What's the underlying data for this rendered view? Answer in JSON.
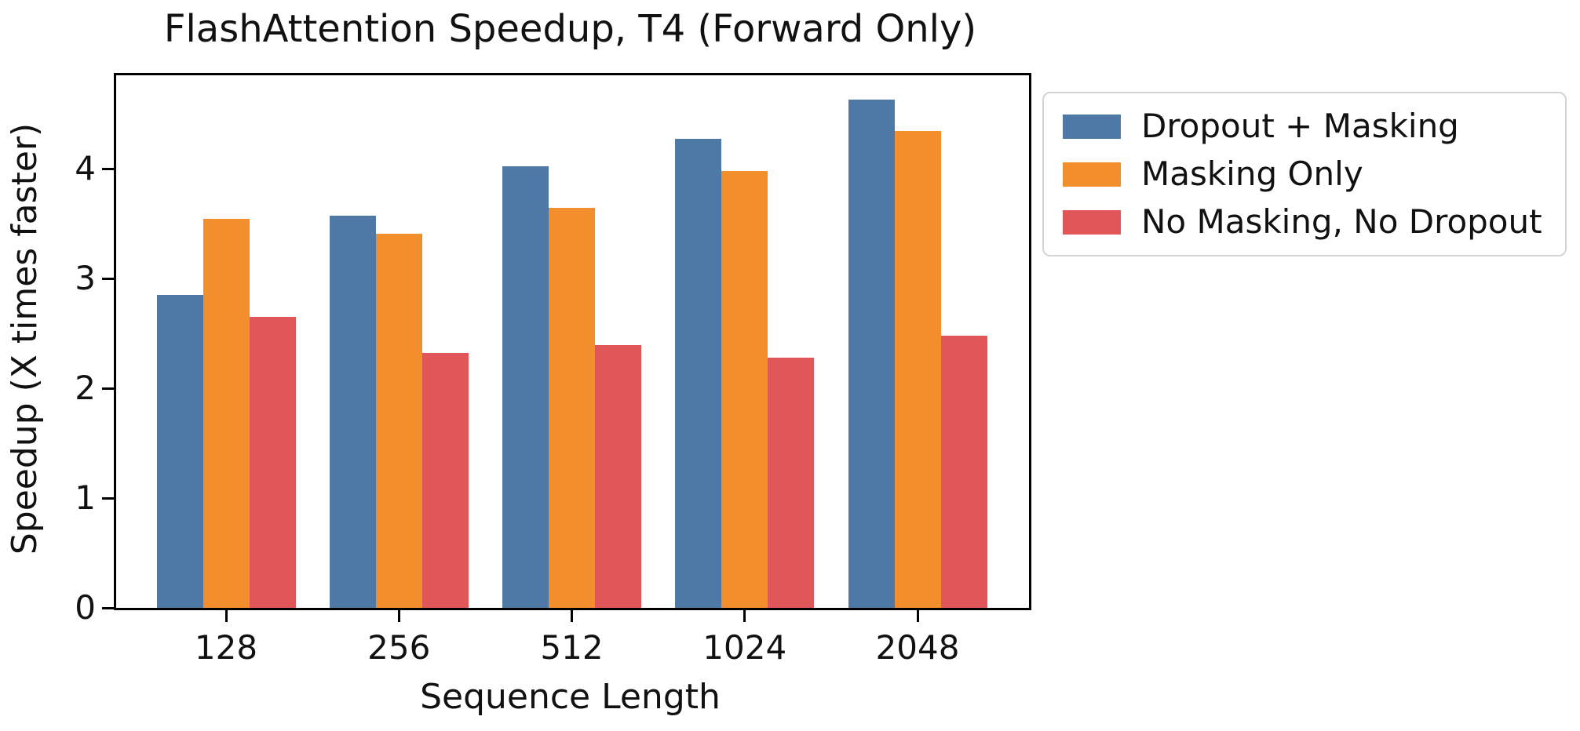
{
  "title": "FlashAttention Speedup, T4 (Forward Only)",
  "chart_data": {
    "type": "bar",
    "title": "FlashAttention Speedup, T4 (Forward Only)",
    "xlabel": "Sequence Length",
    "ylabel": "Speedup (X times faster)",
    "categories": [
      "128",
      "256",
      "512",
      "1024",
      "2048"
    ],
    "series": [
      {
        "name": "Dropout + Masking",
        "color": "#4E79A7",
        "values": [
          2.85,
          3.57,
          4.02,
          4.27,
          4.63
        ]
      },
      {
        "name": "Masking Only",
        "color": "#F28E2B",
        "values": [
          3.54,
          3.41,
          3.64,
          3.98,
          4.34
        ]
      },
      {
        "name": "No Masking, No Dropout",
        "color": "#E15759",
        "values": [
          2.65,
          2.32,
          2.39,
          2.28,
          2.48
        ]
      }
    ],
    "ylim": [
      0,
      4.85
    ],
    "yticks": [
      0,
      1,
      2,
      3,
      4
    ],
    "grid": false,
    "legend_position": "outside-upper-right",
    "axis_color": "#000000",
    "background_color": "#ffffff"
  }
}
